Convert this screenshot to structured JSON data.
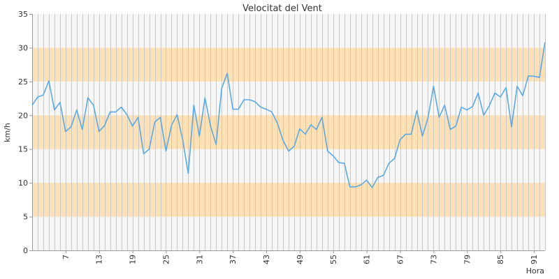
{
  "chart_data": {
    "type": "line",
    "title": "Velocitat del Vent",
    "xlabel": "Hora",
    "ylabel": "km/h",
    "ylim": [
      0,
      35
    ],
    "yticks": [
      0,
      5,
      10,
      15,
      20,
      25,
      30,
      35
    ],
    "xlim": [
      1,
      93
    ],
    "xticks": [
      7,
      13,
      19,
      25,
      31,
      37,
      43,
      49,
      55,
      61,
      67,
      73,
      79,
      85,
      91
    ],
    "bands": [
      [
        5,
        10
      ],
      [
        15,
        20
      ],
      [
        25,
        30
      ]
    ],
    "colors": {
      "line": "#5aa9e6",
      "band": "#fde0b4",
      "plot_bg": "#f6f6f6",
      "vgrid": "#c8c8c8",
      "axis": "#999999"
    },
    "series": [
      {
        "x": [
          1,
          2,
          3,
          4,
          5,
          6,
          7,
          8,
          9,
          10,
          11,
          12,
          13,
          14,
          15,
          16,
          17,
          18,
          19,
          20,
          21,
          22,
          23,
          24,
          25,
          26,
          27,
          28,
          29,
          30,
          31,
          32,
          33,
          34,
          35,
          36,
          37,
          38,
          39,
          40,
          41,
          42,
          43,
          44,
          45,
          46,
          47,
          48,
          49,
          50,
          51,
          52,
          53,
          54,
          55,
          56,
          57,
          58,
          59,
          60,
          61,
          62,
          63,
          64,
          65,
          66,
          67,
          68,
          69,
          70,
          71,
          72,
          73,
          74,
          75,
          76,
          77,
          78,
          79,
          80,
          81,
          82,
          83,
          84,
          85,
          86,
          87,
          88,
          89,
          90,
          91,
          92,
          93
        ],
        "values": [
          21.5,
          22.7,
          23,
          25.1,
          20.8,
          21.9,
          17.6,
          18.3,
          20.8,
          17.9,
          22.6,
          21.5,
          17.6,
          18.5,
          20.5,
          20.5,
          21.2,
          20.1,
          18.4,
          19.7,
          14.3,
          15,
          19,
          19.7,
          14.7,
          18.5,
          20.1,
          16.4,
          11.4,
          21.5,
          16.9,
          22.6,
          18.4,
          15.7,
          24,
          26.2,
          20.9,
          20.9,
          22.3,
          22.3,
          22,
          21.2,
          20.9,
          20.5,
          18.8,
          16.3,
          14.7,
          15.4,
          18,
          17.2,
          18.6,
          17.9,
          19.7,
          14.7,
          14,
          13,
          12.9,
          9.4,
          9.4,
          9.7,
          10.4,
          9.3,
          10.8,
          11.1,
          12.9,
          13.6,
          16.4,
          17.2,
          17.2,
          20.7,
          16.9,
          19.6,
          24.3,
          19.7,
          21.5,
          17.9,
          18.4,
          21.2,
          20.8,
          21.3,
          23.3,
          20,
          21.4,
          23.3,
          22.7,
          24.1,
          18.3,
          24.3,
          22.9,
          25.8,
          25.8,
          25.6,
          30.8
        ]
      }
    ]
  }
}
